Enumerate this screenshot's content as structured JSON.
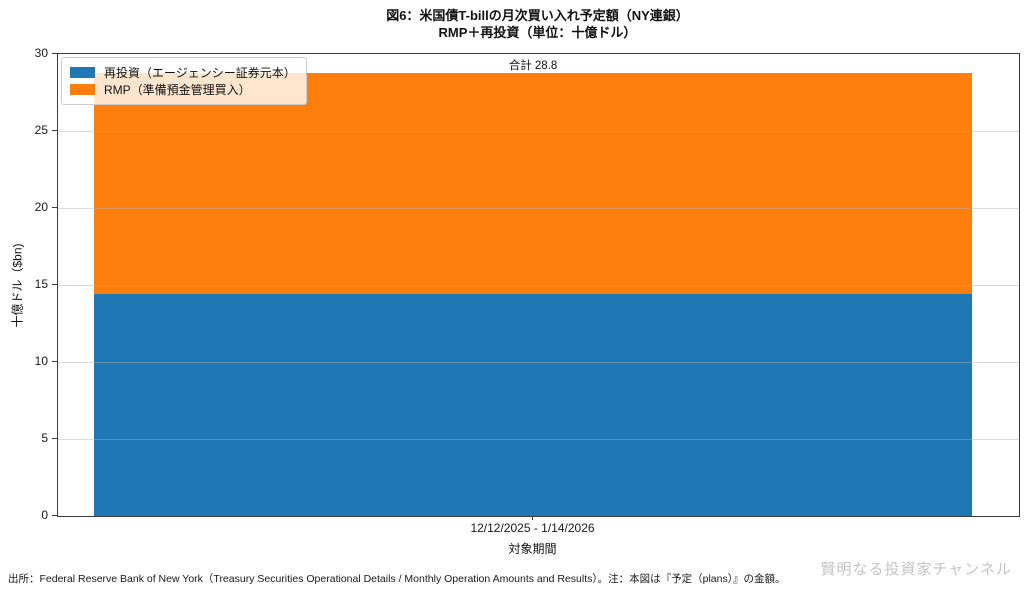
{
  "title": {
    "line1": "図6：米国債T-billの月次買い入れ予定額（NY連銀）",
    "line2": "RMP＋再投資（単位：十億ドル）"
  },
  "chart_data": {
    "type": "bar",
    "stacked": true,
    "categories": [
      "12/12/2025 - 1/14/2026"
    ],
    "series": [
      {
        "name": "再投資（エージェンシー証券元本）",
        "values": [
          14.4
        ],
        "color": "#1f77b4"
      },
      {
        "name": "RMP（準備預金管理買入）",
        "values": [
          14.4
        ],
        "color": "#ff7f0e"
      }
    ],
    "total": 28.8,
    "total_annotation": "合計 28.8",
    "xlabel": "対象期間",
    "ylabel": "十億ドル（$bn)",
    "ylim": [
      0,
      30
    ],
    "yticks": [
      0,
      5,
      10,
      15,
      20,
      25,
      30
    ],
    "grid": "horizontal light-gray lines drawn over bars",
    "legend_position": "upper left"
  },
  "footer": {
    "source_note": "出所：Federal Reserve Bank of New York（Treasury Securities Operational Details / Monthly Operation Amounts and Results）。注：本図は『予定（plans）』の金額。",
    "watermark": "賢明なる投資家チャンネル"
  }
}
